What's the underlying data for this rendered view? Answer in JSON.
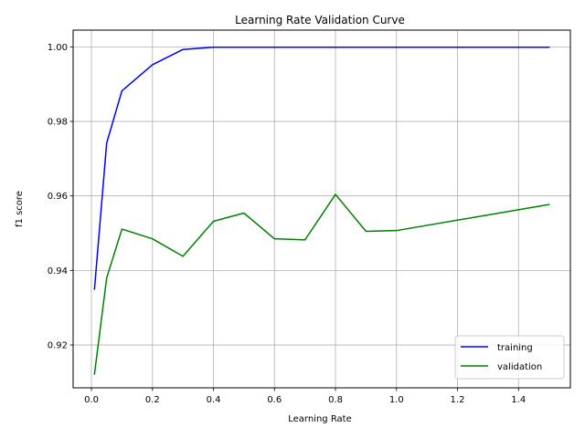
{
  "chart_data": {
    "type": "line",
    "title": "Learning Rate Validation Curve",
    "xlabel": "Learning Rate",
    "ylabel": "f1 score",
    "xlim": [
      -0.06,
      1.57
    ],
    "ylim": [
      0.9085,
      1.0045
    ],
    "xticks": [
      0.0,
      0.2,
      0.4,
      0.6,
      0.8,
      1.0,
      1.2,
      1.4
    ],
    "xtick_labels": [
      "0.0",
      "0.2",
      "0.4",
      "0.6",
      "0.8",
      "1.0",
      "1.2",
      "1.4"
    ],
    "yticks": [
      0.92,
      0.94,
      0.96,
      0.98,
      1.0
    ],
    "ytick_labels": [
      "0.92",
      "0.94",
      "0.96",
      "0.98",
      "1.00"
    ],
    "grid": true,
    "legend_position": "bottom-right",
    "series": [
      {
        "name": "training",
        "color": "#0000ff",
        "x": [
          0.01,
          0.05,
          0.1,
          0.2,
          0.3,
          0.4,
          0.5,
          0.6,
          0.7,
          0.8,
          0.9,
          1.0,
          1.5
        ],
        "values": [
          0.935,
          0.9742,
          0.9882,
          0.9952,
          0.9993,
          0.9999,
          0.9999,
          0.9999,
          0.9999,
          0.9999,
          0.9999,
          0.9999,
          0.9999
        ]
      },
      {
        "name": "validation",
        "color": "#008000",
        "x": [
          0.01,
          0.05,
          0.1,
          0.2,
          0.3,
          0.4,
          0.5,
          0.6,
          0.7,
          0.8,
          0.9,
          1.0,
          1.5
        ],
        "values": [
          0.9122,
          0.938,
          0.9511,
          0.9485,
          0.9438,
          0.9532,
          0.9554,
          0.9485,
          0.9482,
          0.9604,
          0.9505,
          0.9507,
          0.9577
        ]
      }
    ]
  }
}
